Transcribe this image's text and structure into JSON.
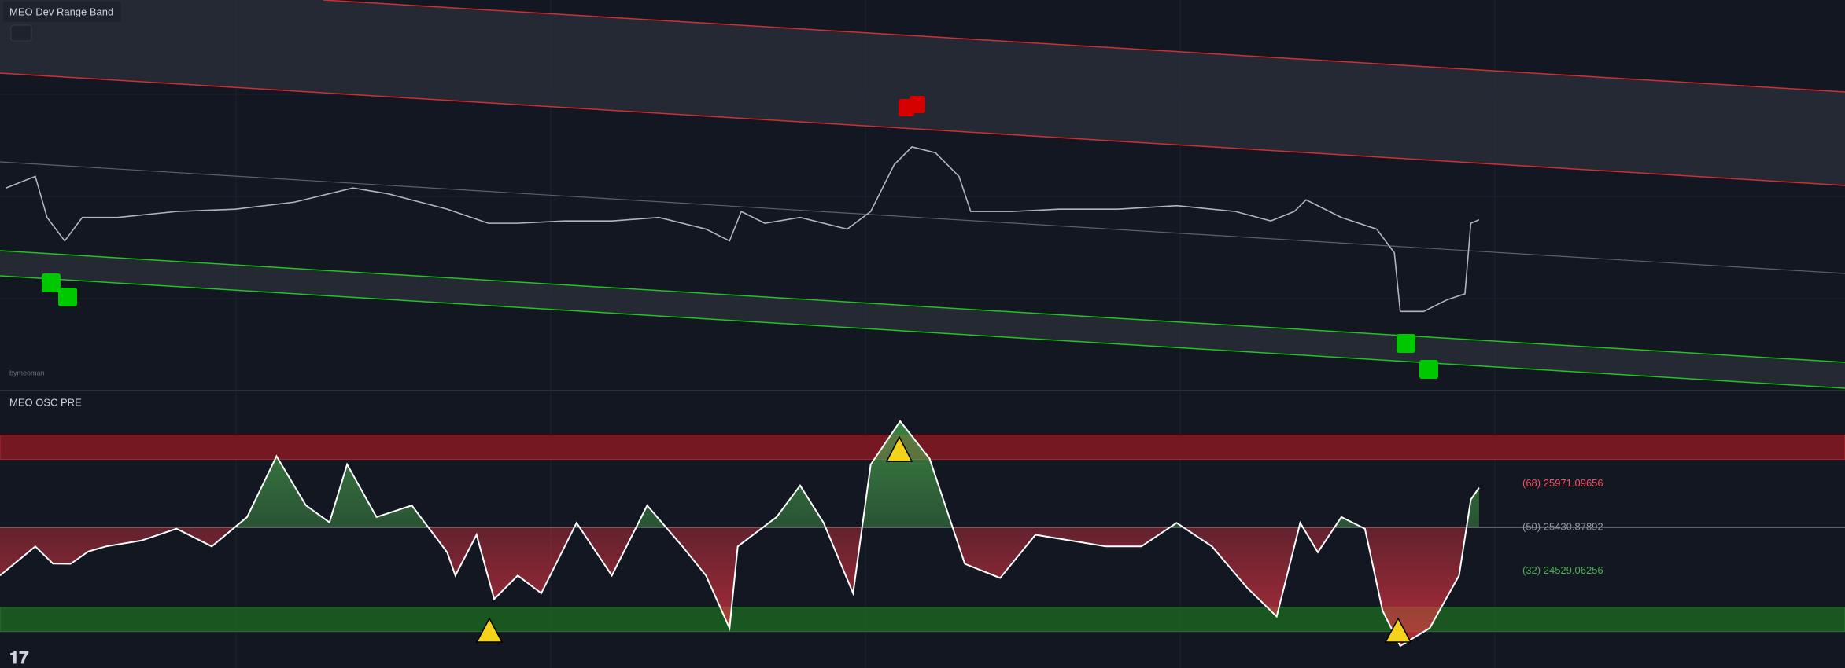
{
  "top_panel": {
    "title": "MEO Dev Range Band",
    "watermark": "bymeoman",
    "ylim": [
      24000,
      27000
    ],
    "xlim": [
      0,
      1568
    ],
    "x": [
      5,
      30,
      40,
      55,
      70,
      100,
      150,
      200,
      250,
      300,
      330,
      380,
      415,
      440,
      480,
      520,
      560,
      600,
      620,
      630,
      650,
      680,
      720,
      740,
      760,
      775,
      795,
      815,
      825,
      860,
      900,
      950,
      1000,
      1050,
      1080,
      1100,
      1110,
      1140,
      1170,
      1185,
      1190,
      1210,
      1230,
      1245,
      1250,
      1257
    ],
    "close": [
      25550,
      25640,
      25323,
      25142,
      25323,
      25323,
      25369,
      25387,
      25441,
      25550,
      25505,
      25387,
      25278,
      25278,
      25296,
      25296,
      25323,
      25233,
      25142,
      25369,
      25278,
      25323,
      25233,
      25369,
      25731,
      25867,
      25822,
      25640,
      25369,
      25369,
      25387,
      25387,
      25414,
      25369,
      25296,
      25369,
      25459,
      25323,
      25233,
      25051,
      24598,
      24598,
      24689,
      24734,
      25278,
      25305
    ]
  },
  "bottom_panel": {
    "title": "MEO OSC PRE",
    "ylim": [
      -8,
      106
    ],
    "xlim": [
      0,
      1568
    ],
    "levels": [
      {
        "value": 68,
        "label": "(68)  25971.09656",
        "color": "#f7525f"
      },
      {
        "value": 50,
        "label": "(50) 25430.87892",
        "color": "#9598a1"
      },
      {
        "value": 32,
        "label": "(32) 24529.06256",
        "color": "#4caf50"
      }
    ],
    "zones": [
      {
        "from": 78,
        "to": 88,
        "color": "#801922"
      },
      {
        "from": 7,
        "to": 17,
        "color": "#1b5e20"
      }
    ],
    "oscillator": {
      "x": [
        0,
        30,
        45,
        60,
        75,
        90,
        120,
        150,
        180,
        210,
        235,
        260,
        280,
        295,
        320,
        350,
        380,
        387,
        405,
        420,
        440,
        460,
        490,
        520,
        550,
        580,
        600,
        620,
        627,
        660,
        680,
        700,
        725,
        740,
        765,
        790,
        820,
        850,
        880,
        910,
        940,
        970,
        1000,
        1030,
        1060,
        1085,
        1105,
        1120,
        1140,
        1160,
        1175,
        1190,
        1215,
        1240,
        1250,
        1257
      ],
      "values": [
        30.1,
        42.1,
        35,
        34.9,
        40,
        42.1,
        44.5,
        49.4,
        42.1,
        54.2,
        79.3,
        59,
        52,
        75.9,
        54.2,
        59,
        39.7,
        30.1,
        46.9,
        20.4,
        30.1,
        22.8,
        51.8,
        30.1,
        59,
        42.1,
        30.1,
        8.4,
        42.1,
        54.2,
        67.2,
        51.8,
        22.8,
        75.9,
        93.7,
        78.3,
        34.9,
        29.1,
        46.9,
        44.5,
        42.1,
        42.1,
        51.8,
        42.1,
        25,
        13.2,
        51.8,
        39.7,
        54.2,
        49.4,
        15.6,
        1.1,
        8.4,
        30.1,
        61.4,
        66.3
      ]
    }
  }
}
